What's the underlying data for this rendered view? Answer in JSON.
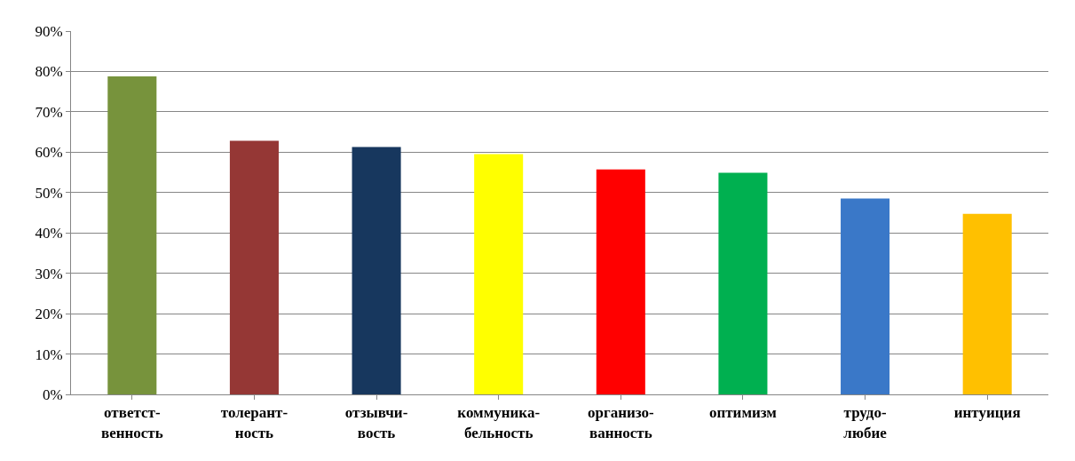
{
  "chart_data": {
    "type": "bar",
    "categories": [
      "ответст-\nвенность",
      "толерант-\nность",
      "отзывчи-\nвость",
      "коммуника-\nбельность",
      "организо-\nванность",
      "оптимизм",
      "трудо-\nлюбие",
      "интуиция"
    ],
    "values": [
      78.8,
      62.8,
      61.3,
      59.5,
      55.7,
      54.9,
      48.5,
      44.7
    ],
    "colors": [
      "#77933c",
      "#953735",
      "#17375e",
      "#ffff00",
      "#ff0000",
      "#00b050",
      "#3a78c8",
      "#ffc000"
    ],
    "ylim": [
      0,
      90
    ],
    "yticks": [
      {
        "value": 0,
        "label": "0%"
      },
      {
        "value": 10,
        "label": "10%"
      },
      {
        "value": 20,
        "label": "20%"
      },
      {
        "value": 30,
        "label": "30%"
      },
      {
        "value": 40,
        "label": "40%"
      },
      {
        "value": 50,
        "label": "50%"
      },
      {
        "value": 60,
        "label": "60%"
      },
      {
        "value": 70,
        "label": "70%"
      },
      {
        "value": 80,
        "label": "80%"
      },
      {
        "value": 90,
        "label": "90%"
      }
    ],
    "grid": "y"
  }
}
